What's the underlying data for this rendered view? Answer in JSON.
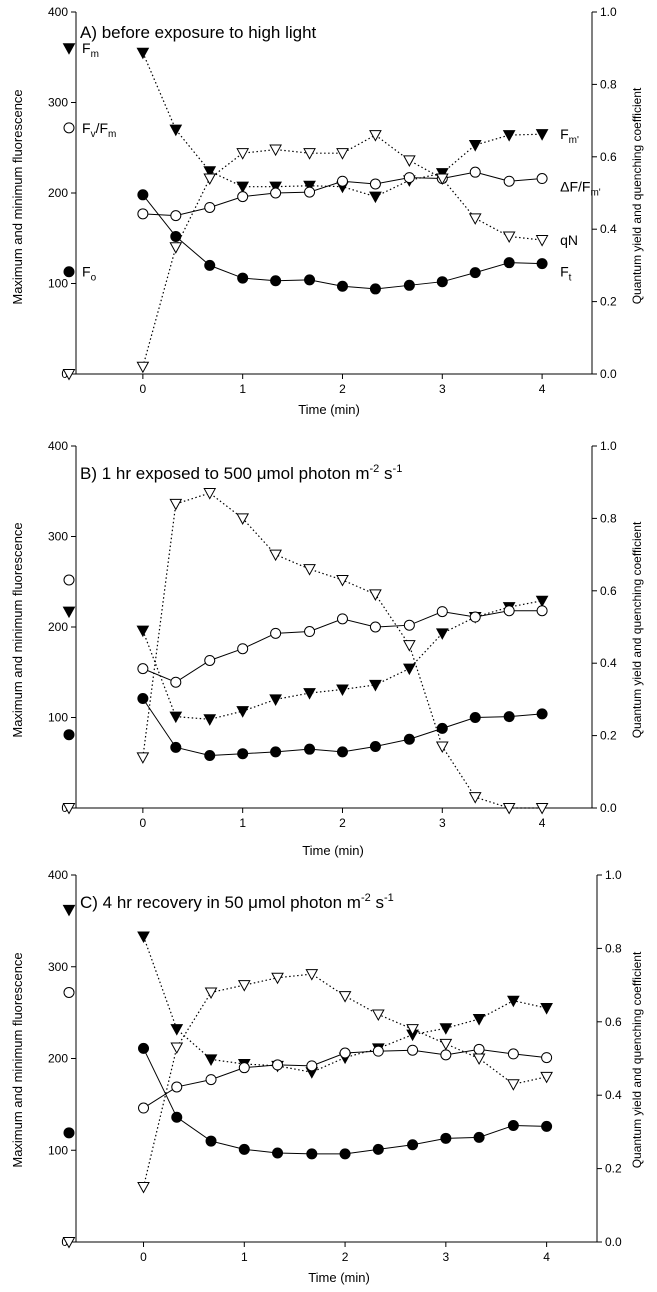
{
  "chart_data": [
    {
      "type": "line",
      "title": "A) before exposure to high light",
      "xlabel": "Time (min)",
      "ylabel": "Maximum and minimum fluorescence",
      "y2label": "Quantum yield and quenching coefficient",
      "xlim": [
        -0.67,
        4.5
      ],
      "ylim": [
        0,
        400
      ],
      "y2lim": [
        0,
        1
      ],
      "x_ticks": [
        "0",
        "1",
        "2",
        "3",
        "4"
      ],
      "y_ticks": [
        "0",
        "100",
        "200",
        "300",
        "400"
      ],
      "y2_ticks": [
        "0.0",
        "0.2",
        "0.4",
        "0.6",
        "0.8",
        "1.0"
      ],
      "x": [
        0,
        0.33,
        0.67,
        1,
        1.33,
        1.67,
        2,
        2.33,
        2.67,
        3,
        3.33,
        3.67,
        4
      ],
      "series": [
        {
          "name": "Fm'",
          "axis": "left",
          "marker": "triangle-down-filled",
          "line": "dotted",
          "values": [
            355,
            270,
            224,
            207,
            207,
            208,
            207,
            196,
            214,
            222,
            253,
            264,
            265
          ]
        },
        {
          "name": "ΔF/Fm'",
          "axis": "left",
          "marker": "circle-open",
          "line": "solid",
          "values": [
            177,
            175,
            184,
            196,
            200,
            201,
            213,
            210,
            217,
            216,
            223,
            213,
            216
          ]
        },
        {
          "name": "Ft",
          "axis": "left",
          "marker": "circle-filled",
          "line": "solid",
          "values": [
            198,
            152,
            120,
            106,
            103,
            104,
            97,
            94,
            98,
            102,
            112,
            123,
            122
          ]
        },
        {
          "name": "qN",
          "axis": "right",
          "marker": "triangle-down-open",
          "line": "dotted",
          "values": [
            0.02,
            0.35,
            0.54,
            0.61,
            0.62,
            0.61,
            0.61,
            0.66,
            0.59,
            0.54,
            0.43,
            0.38,
            0.37
          ]
        }
      ],
      "markers_at_axis": [
        {
          "label_main": "F",
          "label_sub": "m",
          "marker": "triangle-down-filled",
          "y": 360
        },
        {
          "label_main": "F",
          "label_sub": "v",
          "label_rest": "/F",
          "label_sub2": "m",
          "marker": "circle-open",
          "y": 272
        },
        {
          "label_main": "F",
          "label_sub": "o",
          "marker": "circle-filled",
          "y": 113
        },
        {
          "marker": "triangle-down-open",
          "y": 0
        }
      ],
      "end_labels": [
        {
          "main": "F",
          "sub": "m'",
          "series": 0
        },
        {
          "main": "ΔF/F",
          "sub": "m'",
          "series": 1
        },
        {
          "main": "qN",
          "sub": "",
          "series": 3
        },
        {
          "main": "F",
          "sub": "t",
          "series": 2
        }
      ]
    },
    {
      "type": "line",
      "title": "B) 1 hr exposed to 500 μmol photon m",
      "title_sup": "-2",
      "title_mid": " s",
      "title_sup2": "-1",
      "xlabel": "Time (min)",
      "ylabel": "Maximum and minimum fluorescence",
      "y2label": "Quantum yield and quenching coefficient",
      "xlim": [
        -0.67,
        4.5
      ],
      "ylim": [
        0,
        400
      ],
      "y2lim": [
        0,
        1
      ],
      "x_ticks": [
        "0",
        "1",
        "2",
        "3",
        "4"
      ],
      "y_ticks": [
        "0",
        "100",
        "200",
        "300",
        "400"
      ],
      "y2_ticks": [
        "0.0",
        "0.2",
        "0.4",
        "0.6",
        "0.8",
        "1.0"
      ],
      "x": [
        0,
        0.33,
        0.67,
        1,
        1.33,
        1.67,
        2,
        2.33,
        2.67,
        3,
        3.33,
        3.67,
        4
      ],
      "series": [
        {
          "name": "Fm'",
          "axis": "left",
          "marker": "triangle-down-filled",
          "line": "dotted",
          "values": [
            196,
            101,
            98,
            107,
            120,
            127,
            131,
            136,
            154,
            193,
            211,
            222,
            229
          ]
        },
        {
          "name": "ΔF/Fm'",
          "axis": "left",
          "marker": "circle-open",
          "line": "solid",
          "values": [
            154,
            139,
            163,
            176,
            193,
            195,
            209,
            200,
            202,
            217,
            211,
            218,
            218
          ]
        },
        {
          "name": "Ft",
          "axis": "left",
          "marker": "circle-filled",
          "line": "solid",
          "values": [
            121,
            67,
            58,
            60,
            62,
            65,
            62,
            68,
            76,
            88,
            100,
            101,
            104
          ]
        },
        {
          "name": "qN",
          "axis": "right",
          "marker": "triangle-down-open",
          "line": "dotted",
          "values": [
            0.14,
            0.84,
            0.87,
            0.8,
            0.7,
            0.66,
            0.63,
            0.59,
            0.45,
            0.17,
            0.03,
            0.0,
            0.0
          ]
        }
      ],
      "markers_at_axis": [
        {
          "marker": "circle-open",
          "y": 252
        },
        {
          "marker": "triangle-down-filled",
          "y": 217
        },
        {
          "marker": "circle-filled",
          "y": 81
        },
        {
          "marker": "triangle-down-open",
          "y": 0
        }
      ]
    },
    {
      "type": "line",
      "title": "C) 4 hr recovery in 50 μmol photon m",
      "title_sup": "-2",
      "title_mid": " s",
      "title_sup2": "-1",
      "xlabel": "Time (min)",
      "ylabel": "Maximum and minimum fluorescence",
      "y2label": "Quantum yield and quenching coefficient",
      "xlim": [
        -0.67,
        4.5
      ],
      "ylim": [
        0,
        400
      ],
      "y2lim": [
        0,
        1
      ],
      "x_ticks": [
        "0",
        "1",
        "2",
        "3",
        "4"
      ],
      "y_ticks": [
        "0",
        "100",
        "200",
        "300",
        "400"
      ],
      "y2_ticks": [
        "0.0",
        "0.2",
        "0.4",
        "0.6",
        "0.8",
        "1.0"
      ],
      "x": [
        0,
        0.33,
        0.67,
        1,
        1.33,
        1.67,
        2,
        2.33,
        2.67,
        3,
        3.33,
        3.67,
        4
      ],
      "series": [
        {
          "name": "Fm'",
          "axis": "left",
          "marker": "triangle-down-filled",
          "line": "dotted",
          "values": [
            333,
            232,
            199,
            194,
            192,
            185,
            201,
            211,
            226,
            233,
            243,
            263,
            255
          ]
        },
        {
          "name": "ΔF/Fm'",
          "axis": "left",
          "marker": "circle-open",
          "line": "solid",
          "values": [
            146,
            169,
            177,
            190,
            193,
            192,
            206,
            208,
            209,
            204,
            210,
            205,
            201
          ]
        },
        {
          "name": "Ft",
          "axis": "left",
          "marker": "circle-filled",
          "line": "solid",
          "values": [
            211,
            136,
            110,
            101,
            97,
            96,
            96,
            101,
            106,
            113,
            114,
            127,
            126
          ]
        },
        {
          "name": "qN",
          "axis": "right",
          "marker": "triangle-down-open",
          "line": "dotted",
          "values": [
            0.15,
            0.53,
            0.68,
            0.7,
            0.72,
            0.73,
            0.67,
            0.62,
            0.58,
            0.54,
            0.5,
            0.43,
            0.45
          ]
        }
      ],
      "markers_at_axis": [
        {
          "marker": "triangle-down-filled",
          "y": 362
        },
        {
          "marker": "circle-open",
          "y": 272
        },
        {
          "marker": "circle-filled",
          "y": 119
        },
        {
          "marker": "triangle-down-open",
          "y": 0
        }
      ]
    }
  ]
}
